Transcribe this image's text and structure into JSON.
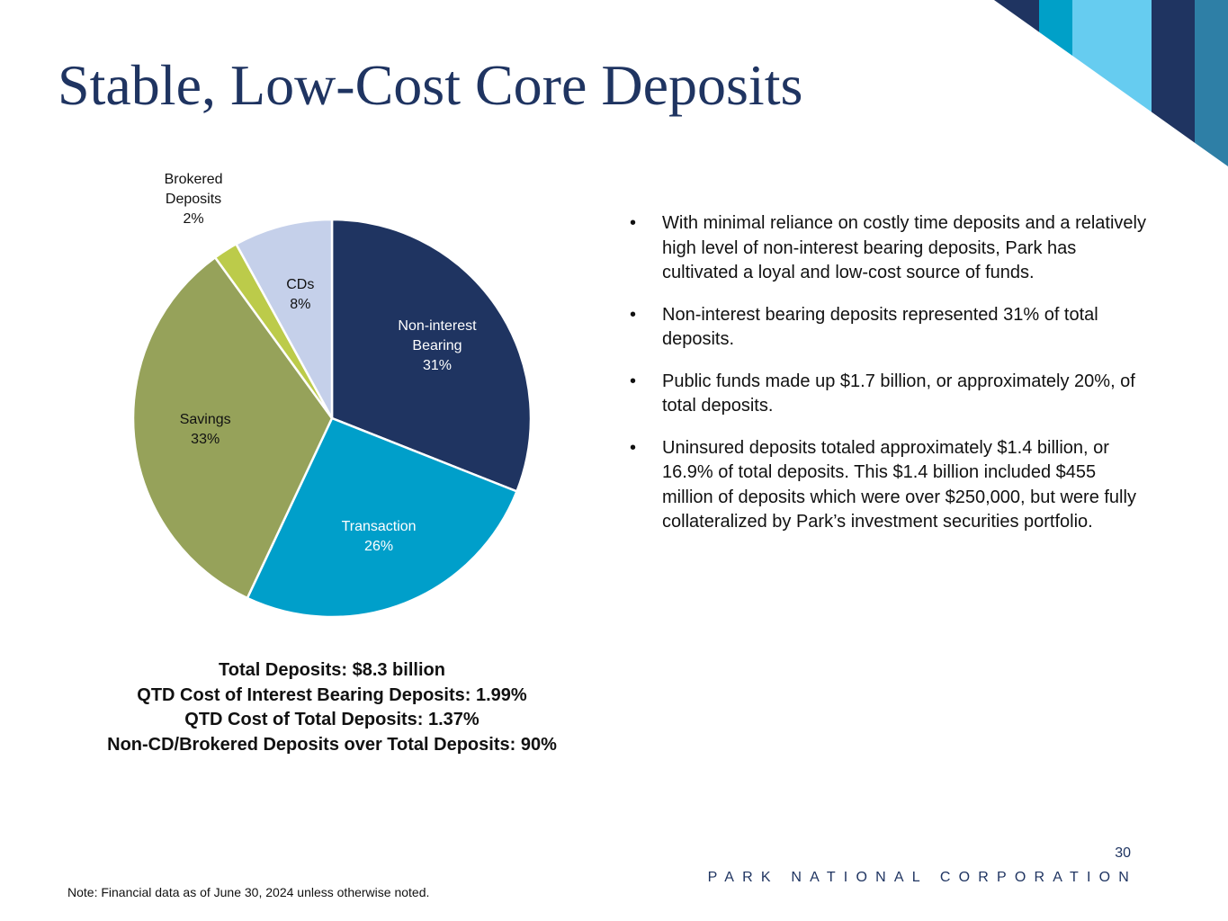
{
  "title": "Stable, Low-Cost Core Deposits",
  "chart_data": {
    "type": "pie",
    "categories": [
      "Non-interest Bearing",
      "Transaction",
      "Savings",
      "Brokered Deposits",
      "CDs"
    ],
    "values": [
      31,
      26,
      33,
      2,
      8
    ],
    "value_labels": [
      "31%",
      "26%",
      "33%",
      "2%",
      "8%"
    ],
    "colors": [
      "#1f3461",
      "#009fca",
      "#96a25a",
      "#bccb4a",
      "#c5d0ea"
    ]
  },
  "bullets": [
    "With minimal reliance on costly time deposits and a relatively high level of non-interest bearing deposits, Park has cultivated a loyal and low-cost source of funds.",
    "Non-interest bearing deposits represented 31% of total deposits.",
    "Public funds made up $1.7 billion, or approximately 20%, of total deposits.",
    "Uninsured deposits totaled approximately $1.4 billion, or 16.9% of total deposits. This $1.4 billion included $455 million of deposits which were over $250,000, but were fully collateralized by Park’s investment securities portfolio."
  ],
  "summary": [
    "Total Deposits: $8.3 billion",
    "QTD Cost of Interest Bearing Deposits: 1.99%",
    "QTD Cost of Total Deposits: 1.37%",
    "Non-CD/Brokered Deposits over Total Deposits: 90%"
  ],
  "page_number": "30",
  "footer": "PARK NATIONAL CORPORATION",
  "note": "Note: Financial data as of June 30, 2024 unless otherwise noted."
}
